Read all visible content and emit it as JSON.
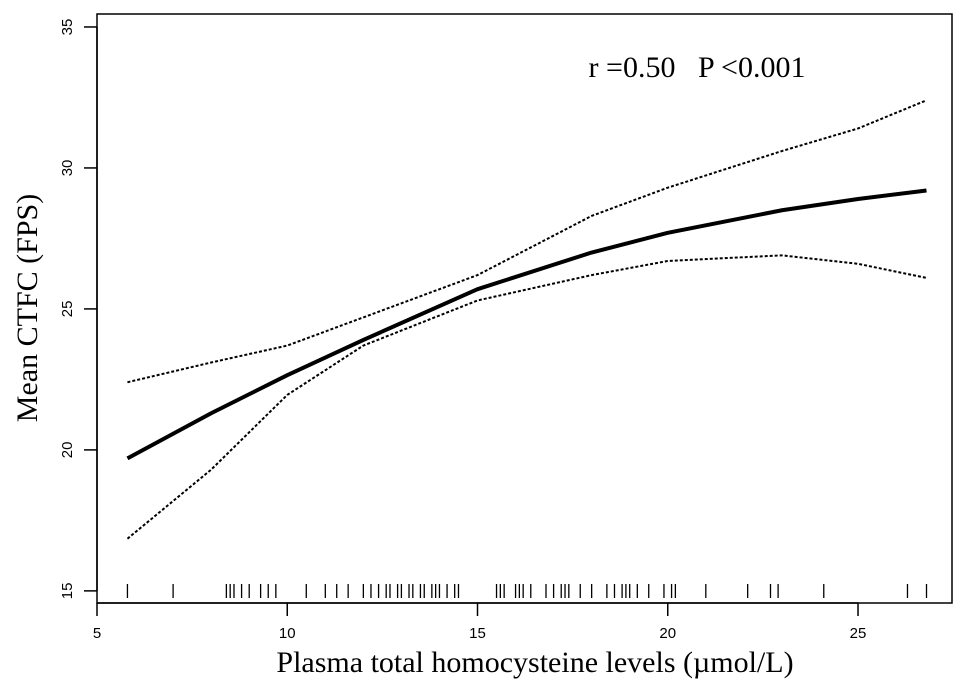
{
  "chart_data": {
    "type": "line",
    "xlabel": "Plasma total homocysteine levels (µmol/L)",
    "ylabel": "Mean CTFC (FPS)",
    "annotation": "r =0.50   P <0.001",
    "x": [
      5.8,
      8,
      10,
      12,
      15,
      18,
      20,
      23,
      25,
      26.8
    ],
    "series": [
      {
        "color": "#000000",
        "style": "solid",
        "values": [
          19.7,
          21.3,
          22.65,
          23.9,
          25.7,
          27.0,
          27.7,
          28.5,
          28.9,
          29.2
        ]
      },
      {
        "color": "#000000",
        "style": "dotted",
        "values": [
          22.4,
          23.1,
          23.7,
          24.7,
          26.2,
          28.3,
          29.3,
          30.6,
          31.4,
          32.4
        ]
      },
      {
        "color": "#000000",
        "style": "dotted",
        "values": [
          16.85,
          19.3,
          21.95,
          23.7,
          25.3,
          26.2,
          26.7,
          26.9,
          26.6,
          26.1
        ]
      }
    ],
    "rug": [
      5.8,
      7.0,
      8.4,
      8.5,
      8.6,
      8.8,
      9.0,
      9.3,
      9.5,
      9.7,
      10.5,
      11.0,
      11.3,
      11.6,
      12.0,
      12.2,
      12.4,
      12.6,
      12.7,
      12.9,
      13.0,
      13.2,
      13.3,
      13.5,
      13.6,
      13.8,
      13.9,
      14.0,
      14.2,
      14.4,
      14.5,
      15.5,
      15.6,
      15.7,
      16.0,
      16.1,
      16.2,
      16.4,
      16.8,
      17.0,
      17.2,
      17.3,
      17.4,
      17.7,
      18.0,
      18.4,
      18.6,
      18.8,
      18.9,
      19.0,
      19.2,
      19.5,
      19.9,
      20.1,
      20.2,
      21.0,
      22.1,
      22.7,
      22.9,
      24.1,
      26.3,
      26.8
    ],
    "xlim": [
      5,
      27.47
    ],
    "ylim": [
      14.57,
      35.46
    ],
    "xticks": [
      5,
      10,
      15,
      20,
      25
    ],
    "yticks": [
      15,
      20,
      25,
      30,
      35
    ]
  }
}
